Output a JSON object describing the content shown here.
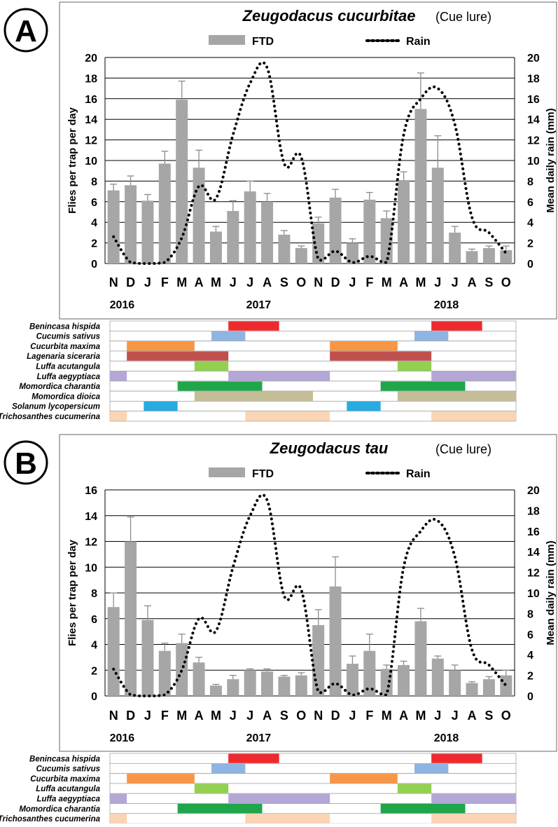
{
  "months": [
    "N",
    "D",
    "J",
    "F",
    "M",
    "A",
    "M",
    "J",
    "J",
    "A",
    "S",
    "O",
    "N",
    "D",
    "J",
    "F",
    "M",
    "A",
    "M",
    "J",
    "J",
    "A",
    "S",
    "O"
  ],
  "years": [
    {
      "label": "2016",
      "idx": 0.5
    },
    {
      "label": "2017",
      "idx": 8.5
    },
    {
      "label": "2018",
      "idx": 19.5
    }
  ],
  "rain_ticks": [
    0,
    2,
    4,
    6,
    8,
    10,
    12,
    14,
    16,
    18,
    20
  ],
  "colors": {
    "bar": "#a6a6a6",
    "error": "#8c8c8c",
    "rain": "#000000",
    "benincasa": "#ee2a2f",
    "cucumis": "#8eb4e3",
    "cucurbita": "#f79646",
    "lagenaria": "#c0504d",
    "luffa_acut": "#92d050",
    "luffa_aeg": "#b4a7d6",
    "mom_char": "#1fa64a",
    "mom_dioica": "#c4bd97",
    "solanum": "#29abe2",
    "tricho": "#fbd4b4"
  },
  "chart_data": [
    {
      "panel": "A",
      "type": "bar",
      "title": "Zeugodacus cucurbitae",
      "subtitle": "(Cue lure)",
      "legend": {
        "bar": "FTD",
        "line": "Rain"
      },
      "ylabel": "Flies per trap per day",
      "y2label": "Mean daily rain (mm)",
      "ylim": [
        0,
        20
      ],
      "y2lim": [
        0,
        20
      ],
      "yticks": [
        0,
        2,
        4,
        6,
        8,
        10,
        12,
        14,
        16,
        18,
        20
      ],
      "categories": [
        "N",
        "D",
        "J",
        "F",
        "M",
        "A",
        "M",
        "J",
        "J",
        "A",
        "S",
        "O",
        "N",
        "D",
        "J",
        "F",
        "M",
        "A",
        "M",
        "J",
        "J",
        "A",
        "S",
        "O"
      ],
      "series": [
        {
          "name": "FTD",
          "values": [
            7.1,
            7.6,
            6.1,
            9.7,
            15.9,
            9.3,
            3.1,
            5.1,
            7.0,
            6.0,
            2.8,
            1.5,
            3.9,
            6.4,
            2.0,
            6.2,
            4.4,
            8.1,
            15.0,
            9.3,
            3.0,
            1.2,
            1.5,
            1.3
          ],
          "errors": [
            0.6,
            0.9,
            0.6,
            1.2,
            1.8,
            1.7,
            0.5,
            1.0,
            1.0,
            0.8,
            0.4,
            0.2,
            0.6,
            0.8,
            0.4,
            0.7,
            0.7,
            0.8,
            3.5,
            3.1,
            0.6,
            0.2,
            0.2,
            0.4
          ]
        },
        {
          "name": "Rain",
          "values": [
            2.6,
            0.1,
            0.0,
            0.1,
            2.5,
            7.5,
            6.3,
            12.5,
            17.5,
            19.0,
            9.7,
            10.3,
            0.4,
            1.2,
            0.1,
            0.7,
            0.1,
            12.5,
            16.0,
            17.0,
            13.5,
            4.5,
            3.0,
            1.0
          ]
        }
      ]
    },
    {
      "panel": "B",
      "type": "bar",
      "title": "Zeugodacus tau",
      "subtitle": "(Cue lure)",
      "legend": {
        "bar": "FTD",
        "line": "Rain"
      },
      "ylabel": "Flies per trap per day",
      "y2label": "Mean daily rain (mm)",
      "ylim": [
        0,
        16
      ],
      "y2lim": [
        0,
        20
      ],
      "yticks": [
        0,
        2,
        4,
        6,
        8,
        10,
        12,
        14,
        16
      ],
      "categories": [
        "N",
        "D",
        "J",
        "F",
        "M",
        "A",
        "M",
        "J",
        "J",
        "A",
        "S",
        "O",
        "N",
        "D",
        "J",
        "F",
        "M",
        "A",
        "M",
        "J",
        "J",
        "A",
        "S",
        "O"
      ],
      "series": [
        {
          "name": "FTD",
          "values": [
            6.9,
            12.0,
            5.9,
            3.5,
            4.1,
            2.6,
            0.8,
            1.3,
            2.0,
            1.9,
            1.5,
            1.6,
            5.5,
            8.5,
            2.5,
            3.5,
            2.1,
            2.4,
            5.8,
            2.9,
            2.0,
            1.0,
            1.3,
            1.6
          ],
          "errors": [
            1.1,
            1.9,
            1.1,
            0.6,
            0.7,
            0.4,
            0.1,
            0.3,
            0.1,
            0.2,
            0.1,
            0.2,
            1.2,
            2.3,
            0.6,
            1.3,
            0.3,
            0.3,
            1.0,
            0.2,
            0.4,
            0.1,
            0.2,
            0.4
          ]
        },
        {
          "name": "Rain",
          "values": [
            2.6,
            0.1,
            0.0,
            0.1,
            2.5,
            7.5,
            6.3,
            12.5,
            17.5,
            19.0,
            9.7,
            10.3,
            0.4,
            1.2,
            0.1,
            0.7,
            0.1,
            12.5,
            16.0,
            17.0,
            13.5,
            4.5,
            3.0,
            1.0
          ]
        }
      ]
    }
  ],
  "hosts_A": [
    {
      "name": "Benincasa hispida",
      "color": "benincasa",
      "segs": [
        [
          7,
          10
        ],
        [
          19,
          22
        ]
      ]
    },
    {
      "name": "Cucumis sativus",
      "color": "cucumis",
      "segs": [
        [
          6,
          8
        ],
        [
          18,
          20
        ]
      ]
    },
    {
      "name": "Cucurbita maxima",
      "color": "cucurbita",
      "segs": [
        [
          1,
          5
        ],
        [
          13,
          17
        ]
      ]
    },
    {
      "name": "Lagenaria siceraria",
      "color": "lagenaria",
      "segs": [
        [
          1,
          7
        ],
        [
          13,
          19
        ]
      ]
    },
    {
      "name": "Luffa acutangula",
      "color": "luffa_acut",
      "segs": [
        [
          5,
          7
        ],
        [
          17,
          19
        ]
      ]
    },
    {
      "name": "Luffa aegyptiaca",
      "color": "luffa_aeg",
      "segs": [
        [
          0,
          1
        ],
        [
          7,
          13
        ],
        [
          19,
          24
        ]
      ]
    },
    {
      "name": "Momordica charantia",
      "color": "mom_char",
      "segs": [
        [
          4,
          9
        ],
        [
          16,
          21
        ]
      ]
    },
    {
      "name": "Momordica dioica",
      "color": "mom_dioica",
      "segs": [
        [
          5,
          12
        ],
        [
          17,
          24
        ]
      ]
    },
    {
      "name": "Solanum lycopersicum",
      "color": "solanum",
      "segs": [
        [
          2,
          4
        ],
        [
          14,
          16
        ]
      ]
    },
    {
      "name": "Trichosanthes cucumerina",
      "color": "tricho",
      "segs": [
        [
          0,
          1
        ],
        [
          8,
          13
        ],
        [
          19,
          24
        ]
      ]
    }
  ],
  "hosts_B": [
    {
      "name": "Benincasa hispida",
      "color": "benincasa",
      "segs": [
        [
          7,
          10
        ],
        [
          19,
          22
        ]
      ]
    },
    {
      "name": "Cucumis sativus",
      "color": "cucumis",
      "segs": [
        [
          6,
          8
        ],
        [
          18,
          20
        ]
      ]
    },
    {
      "name": "Cucurbita maxima",
      "color": "cucurbita",
      "segs": [
        [
          1,
          5
        ],
        [
          13,
          17
        ]
      ]
    },
    {
      "name": "Luffa acutangula",
      "color": "luffa_acut",
      "segs": [
        [
          5,
          7
        ],
        [
          17,
          19
        ]
      ]
    },
    {
      "name": "Luffa aegyptiaca",
      "color": "luffa_aeg",
      "segs": [
        [
          0,
          1
        ],
        [
          7,
          13
        ],
        [
          19,
          24
        ]
      ]
    },
    {
      "name": "Momordica charantia",
      "color": "mom_char",
      "segs": [
        [
          4,
          9
        ],
        [
          16,
          21
        ]
      ]
    },
    {
      "name": "Trichosanthes cucumerina",
      "color": "tricho",
      "segs": [
        [
          0,
          1
        ],
        [
          8,
          13
        ],
        [
          19,
          24
        ]
      ]
    }
  ]
}
